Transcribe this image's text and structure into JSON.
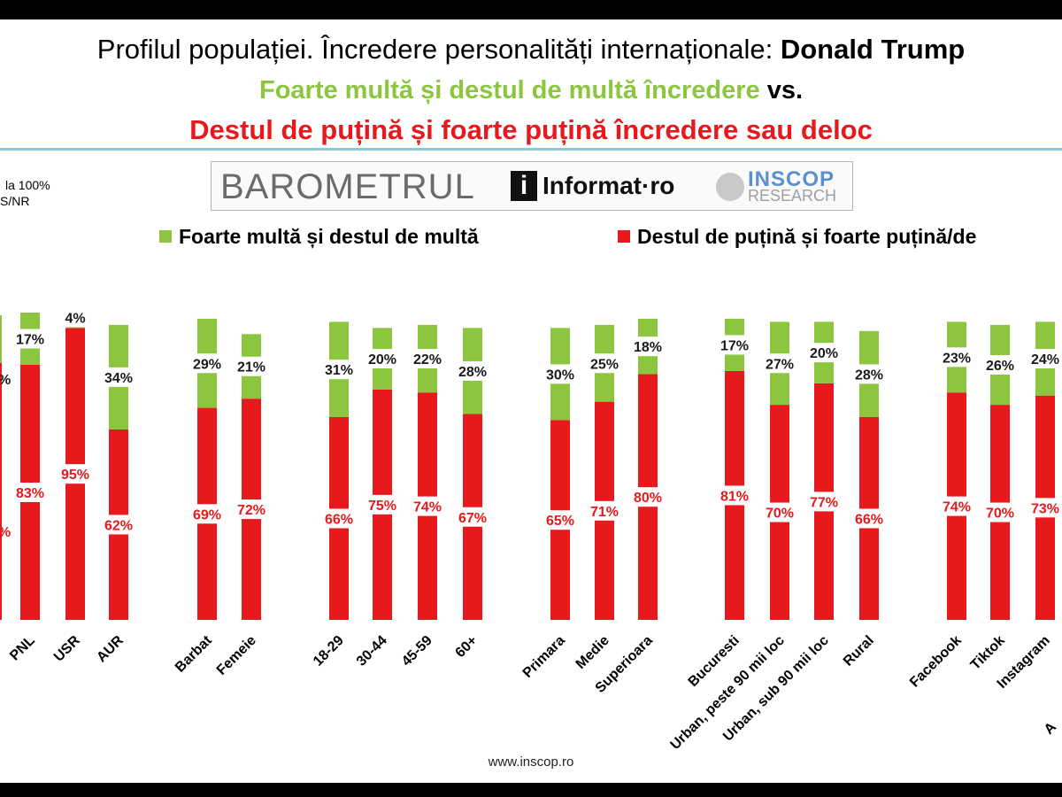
{
  "header": {
    "title_prefix": "Profilul populației. Încredere personalități internaționale: ",
    "title_bold": "Donald Trump",
    "subtitle_green": "Foarte multă și destul de multă încredere",
    "subtitle_vs": " vs.",
    "subtitle_red": "Destul de puțină și foarte puțină încredere sau deloc"
  },
  "note": {
    "line1": "la 100%",
    "line2": "S/NR"
  },
  "logo": {
    "barometrul": "BAROMETRUL",
    "informat_mark": "i",
    "informat_text": "Informat·ro",
    "inscop_top": "INSCOP",
    "inscop_bottom": "RESEARCH"
  },
  "footer": {
    "url": "www.inscop.ro"
  },
  "colors": {
    "green": "#8cc63f",
    "red": "#e8191c",
    "light_blue": "#8ec7df"
  },
  "chart_data": {
    "type": "bar",
    "stacked": true,
    "legend_placement": "top",
    "grid": false,
    "ylim": [
      0,
      100
    ],
    "series": [
      {
        "name": "Foarte multă și destul de multă",
        "color": "#8cc63f"
      },
      {
        "name": "Destul de puțină și foarte puțină/de",
        "color": "#e8191c"
      }
    ],
    "categories": [
      "PNL",
      "USR",
      "AUR",
      "Barbat",
      "Femeie",
      "18-29",
      "30-44",
      "45-59",
      "60+",
      "Primara",
      "Medie",
      "Superioara",
      "Bucuresti",
      "Urban, peste 90 mii loc",
      "Urban, sub 90 mii loc",
      "Rural",
      "Facebook",
      "Tiktok",
      "Instagram"
    ],
    "green": [
      17,
      4,
      34,
      29,
      21,
      31,
      20,
      22,
      28,
      30,
      25,
      18,
      17,
      27,
      20,
      28,
      23,
      26,
      24
    ],
    "red": [
      83,
      95,
      62,
      69,
      72,
      66,
      75,
      74,
      67,
      65,
      71,
      80,
      81,
      70,
      77,
      66,
      74,
      70,
      73
    ],
    "green_labels": [
      "17%",
      "4%",
      "34%",
      "29%",
      "21%",
      "31%",
      "20%",
      "22%",
      "28%",
      "30%",
      "25%",
      "18%",
      "17%",
      "27%",
      "20%",
      "28%",
      "23%",
      "26%",
      "24%"
    ],
    "red_labels": [
      "83%",
      "95%",
      "62%",
      "69%",
      "72%",
      "66%",
      "75%",
      "74%",
      "67%",
      "65%",
      "71%",
      "80%",
      "81%",
      "70%",
      "77%",
      "66%",
      "74%",
      "70%",
      "73%"
    ],
    "partial_left": {
      "green_label": "%",
      "red_label": "%"
    },
    "partial_right": {
      "green_label": "",
      "red_label": "",
      "category_label": "A"
    }
  }
}
